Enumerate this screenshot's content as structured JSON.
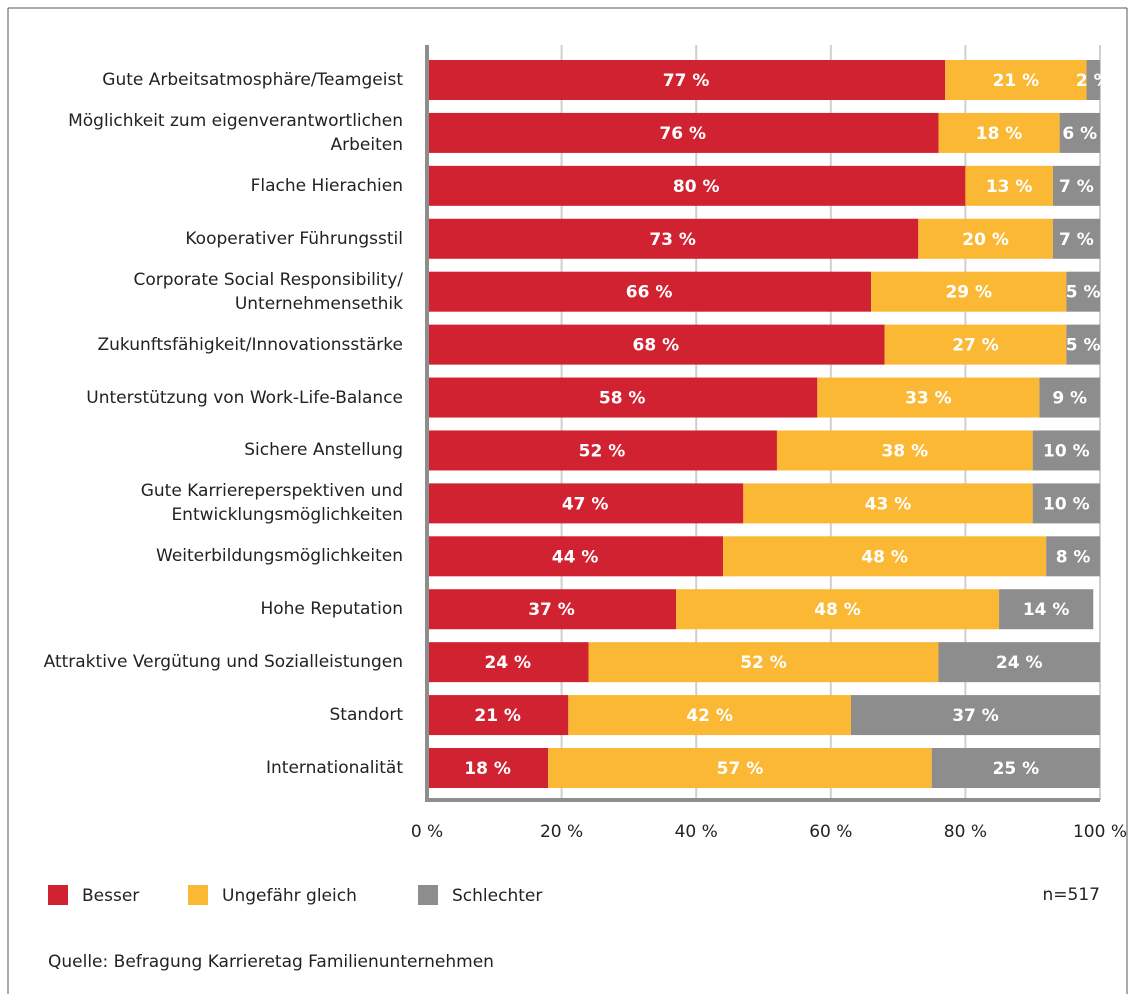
{
  "chart_data": {
    "type": "stacked_barh",
    "categories": [
      "Gute Arbeitsatmosphäre/Teamgeist",
      "Möglichkeit zum eigenverantwortlichen Arbeiten",
      "Flache Hierachien",
      "Kooperativer Führungsstil",
      "Corporate Social Responsibility/ Unternehmensethik",
      "Zukunftsfähigkeit/Innovationsstärke",
      "Unterstützung von Work-Life-Balance",
      "Sichere Anstellung",
      "Gute Karriereperspektiven und Entwicklungsmöglichkeiten",
      "Weiterbildungsmöglichkeiten",
      "Hohe Reputation",
      "Attraktive Vergütung und Sozialleistungen",
      "Standort",
      "Internationalität"
    ],
    "series": [
      {
        "name": "Besser",
        "color": "#d12232",
        "values": [
          77,
          76,
          80,
          73,
          66,
          68,
          58,
          52,
          47,
          44,
          37,
          24,
          21,
          18
        ],
        "value_labels": [
          "77 %",
          "76 %",
          "80 %",
          "73 %",
          "66 %",
          "68 %",
          "58 %",
          "52 %",
          "47 %",
          "44 %",
          "37 %",
          "24 %",
          "21 %",
          "18 %"
        ]
      },
      {
        "name": "Ungefähr gleich",
        "color": "#fbb834",
        "values": [
          21,
          18,
          13,
          20,
          29,
          27,
          33,
          38,
          43,
          48,
          48,
          52,
          42,
          57
        ],
        "value_labels": [
          "21 %",
          "18 %",
          "13 %",
          "20 %",
          "29 %",
          "27 %",
          "33 %",
          "38 %",
          "43 %",
          "48 %",
          "48 %",
          "52 %",
          "42 %",
          "57 %"
        ]
      },
      {
        "name": "Schlechter",
        "color": "#8d8d8d",
        "values": [
          2,
          6,
          7,
          7,
          5,
          5,
          9,
          10,
          10,
          8,
          14,
          24,
          37,
          25
        ],
        "value_labels": [
          "2 %",
          "6 %",
          "7 %",
          "7 %",
          "5 %",
          "5 %",
          "9 %",
          "10 %",
          "10 %",
          "8 %",
          "14 %",
          "24 %",
          "37 %",
          "25 %"
        ]
      }
    ],
    "xlim": [
      0,
      100
    ],
    "xticks": [
      {
        "value": 0,
        "label": "0 %"
      },
      {
        "value": 20,
        "label": "20 %"
      },
      {
        "value": 40,
        "label": "40 %"
      },
      {
        "value": 60,
        "label": "60 %"
      },
      {
        "value": 80,
        "label": "80 %"
      },
      {
        "value": 100,
        "label": "100 %"
      }
    ],
    "grid": true,
    "annotations": [
      "n=517"
    ],
    "source": "Quelle: Befragung Karrieretag Familienunternehmen"
  }
}
